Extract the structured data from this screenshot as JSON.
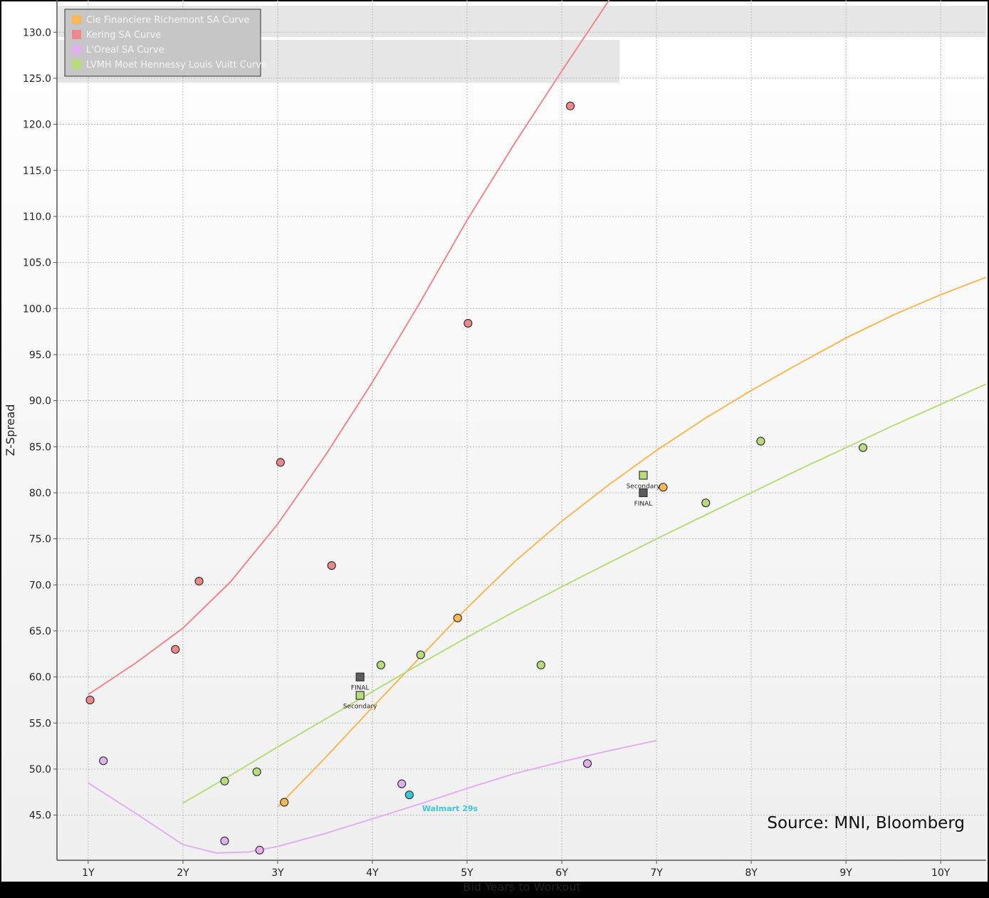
{
  "chart_data": {
    "type": "scatter",
    "xlabel": "Bid Years to Workout",
    "ylabel": "Z-Spread",
    "xlim": [
      0.67,
      10.48
    ],
    "ylim": [
      40.1,
      133.5
    ],
    "x_ticks": [
      1,
      2,
      3,
      4,
      5,
      6,
      7,
      8,
      9,
      10
    ],
    "x_tick_labels": [
      "1Y",
      "2Y",
      "3Y",
      "4Y",
      "5Y",
      "6Y",
      "7Y",
      "8Y",
      "9Y",
      "10Y"
    ],
    "y_ticks": [
      45,
      50,
      55,
      60,
      65,
      70,
      75,
      80,
      85,
      90,
      95,
      100,
      105,
      110,
      115,
      120,
      125,
      130
    ],
    "y_tick_labels": [
      "45.0",
      "50.0",
      "55.0",
      "60.0",
      "65.0",
      "70.0",
      "75.0",
      "80.0",
      "85.0",
      "90.0",
      "95.0",
      "100.0",
      "105.0",
      "110.0",
      "115.0",
      "120.0",
      "125.0",
      "130.0"
    ],
    "grid": true,
    "legend_position": "top-left",
    "series": [
      {
        "name": "Cie Financiere Richemont SA Curve",
        "color": "#f7b955",
        "points": [
          [
            3.07,
            46.4
          ],
          [
            4.9,
            66.4
          ],
          [
            7.07,
            80.6
          ]
        ],
        "curve": [
          [
            3.0,
            45.9
          ],
          [
            3.5,
            51.2
          ],
          [
            4.0,
            56.7
          ],
          [
            4.5,
            62.1
          ],
          [
            5.0,
            67.5
          ],
          [
            5.5,
            72.5
          ],
          [
            6.0,
            76.9
          ],
          [
            6.5,
            80.9
          ],
          [
            7.0,
            84.6
          ],
          [
            7.5,
            88.0
          ],
          [
            8.0,
            91.1
          ],
          [
            8.5,
            94.0
          ],
          [
            9.0,
            96.8
          ],
          [
            9.5,
            99.3
          ],
          [
            10.0,
            101.5
          ],
          [
            10.48,
            103.4
          ]
        ]
      },
      {
        "name": "Kering SA Curve",
        "color": "#f0868e",
        "points": [
          [
            1.02,
            57.5
          ],
          [
            1.92,
            63.0
          ],
          [
            2.17,
            70.4
          ],
          [
            3.03,
            83.3
          ],
          [
            3.57,
            72.1
          ],
          [
            5.01,
            98.4
          ],
          [
            6.09,
            122.0
          ]
        ],
        "curve": [
          [
            1.0,
            58.1
          ],
          [
            1.5,
            61.5
          ],
          [
            2.0,
            65.3
          ],
          [
            2.5,
            70.3
          ],
          [
            3.0,
            76.6
          ],
          [
            3.5,
            84.0
          ],
          [
            4.0,
            92.0
          ],
          [
            4.5,
            100.6
          ],
          [
            5.0,
            109.6
          ],
          [
            5.5,
            117.9
          ],
          [
            6.0,
            125.8
          ],
          [
            6.5,
            133.5
          ]
        ]
      },
      {
        "name": "L'Oreal SA Curve",
        "color": "#e2b0f0",
        "points": [
          [
            1.16,
            50.9
          ],
          [
            2.44,
            42.2
          ],
          [
            2.81,
            41.2
          ],
          [
            4.31,
            48.4
          ],
          [
            6.27,
            50.6
          ]
        ],
        "curve": [
          [
            1.0,
            48.5
          ],
          [
            1.5,
            45.2
          ],
          [
            2.0,
            41.8
          ],
          [
            2.35,
            40.9
          ],
          [
            2.7,
            41.0
          ],
          [
            3.0,
            41.6
          ],
          [
            3.5,
            43.0
          ],
          [
            4.0,
            44.6
          ],
          [
            4.5,
            46.2
          ],
          [
            5.0,
            47.9
          ],
          [
            5.5,
            49.5
          ],
          [
            6.0,
            50.8
          ],
          [
            6.5,
            52.0
          ],
          [
            7.0,
            53.1
          ]
        ]
      },
      {
        "name": "LVMH Moet Hennessy Louis Vuitt Curve",
        "color": "#b6dd7a",
        "points": [
          [
            2.44,
            48.7
          ],
          [
            2.78,
            49.7
          ],
          [
            4.09,
            61.3
          ],
          [
            4.51,
            62.4
          ],
          [
            5.78,
            61.3
          ],
          [
            7.52,
            78.9
          ],
          [
            8.1,
            85.6
          ],
          [
            9.18,
            84.9
          ]
        ],
        "curve": [
          [
            2.0,
            46.3
          ],
          [
            2.5,
            49.3
          ],
          [
            3.0,
            52.4
          ],
          [
            3.5,
            55.4
          ],
          [
            4.0,
            58.4
          ],
          [
            4.5,
            61.4
          ],
          [
            5.0,
            64.3
          ],
          [
            5.5,
            67.1
          ],
          [
            6.0,
            69.8
          ],
          [
            6.5,
            72.4
          ],
          [
            7.0,
            75.0
          ],
          [
            7.5,
            77.5
          ],
          [
            8.0,
            80.0
          ],
          [
            8.5,
            82.5
          ],
          [
            9.0,
            84.9
          ],
          [
            9.5,
            87.3
          ],
          [
            10.0,
            89.6
          ],
          [
            10.48,
            91.8
          ]
        ]
      }
    ],
    "markers": [
      {
        "label": "FINAL",
        "x": 3.87,
        "y": 60.0,
        "color": "#5c5c5c",
        "label_pos": "below"
      },
      {
        "label": "Secondary",
        "x": 3.87,
        "y": 58.0,
        "color": "#b6dd7a",
        "label_pos": "below"
      },
      {
        "label": "Secondary",
        "x": 6.86,
        "y": 81.9,
        "color": "#b6dd7a",
        "label_pos": "below"
      },
      {
        "label": "FINAL",
        "x": 6.86,
        "y": 80.0,
        "color": "#5c5c5c",
        "label_pos": "below"
      }
    ],
    "annotations": [
      {
        "label": "Walmart 29s",
        "x": 4.39,
        "y": 47.2,
        "color": "#3cc7d6"
      }
    ],
    "source": "Source: MNI, Bloomberg"
  }
}
